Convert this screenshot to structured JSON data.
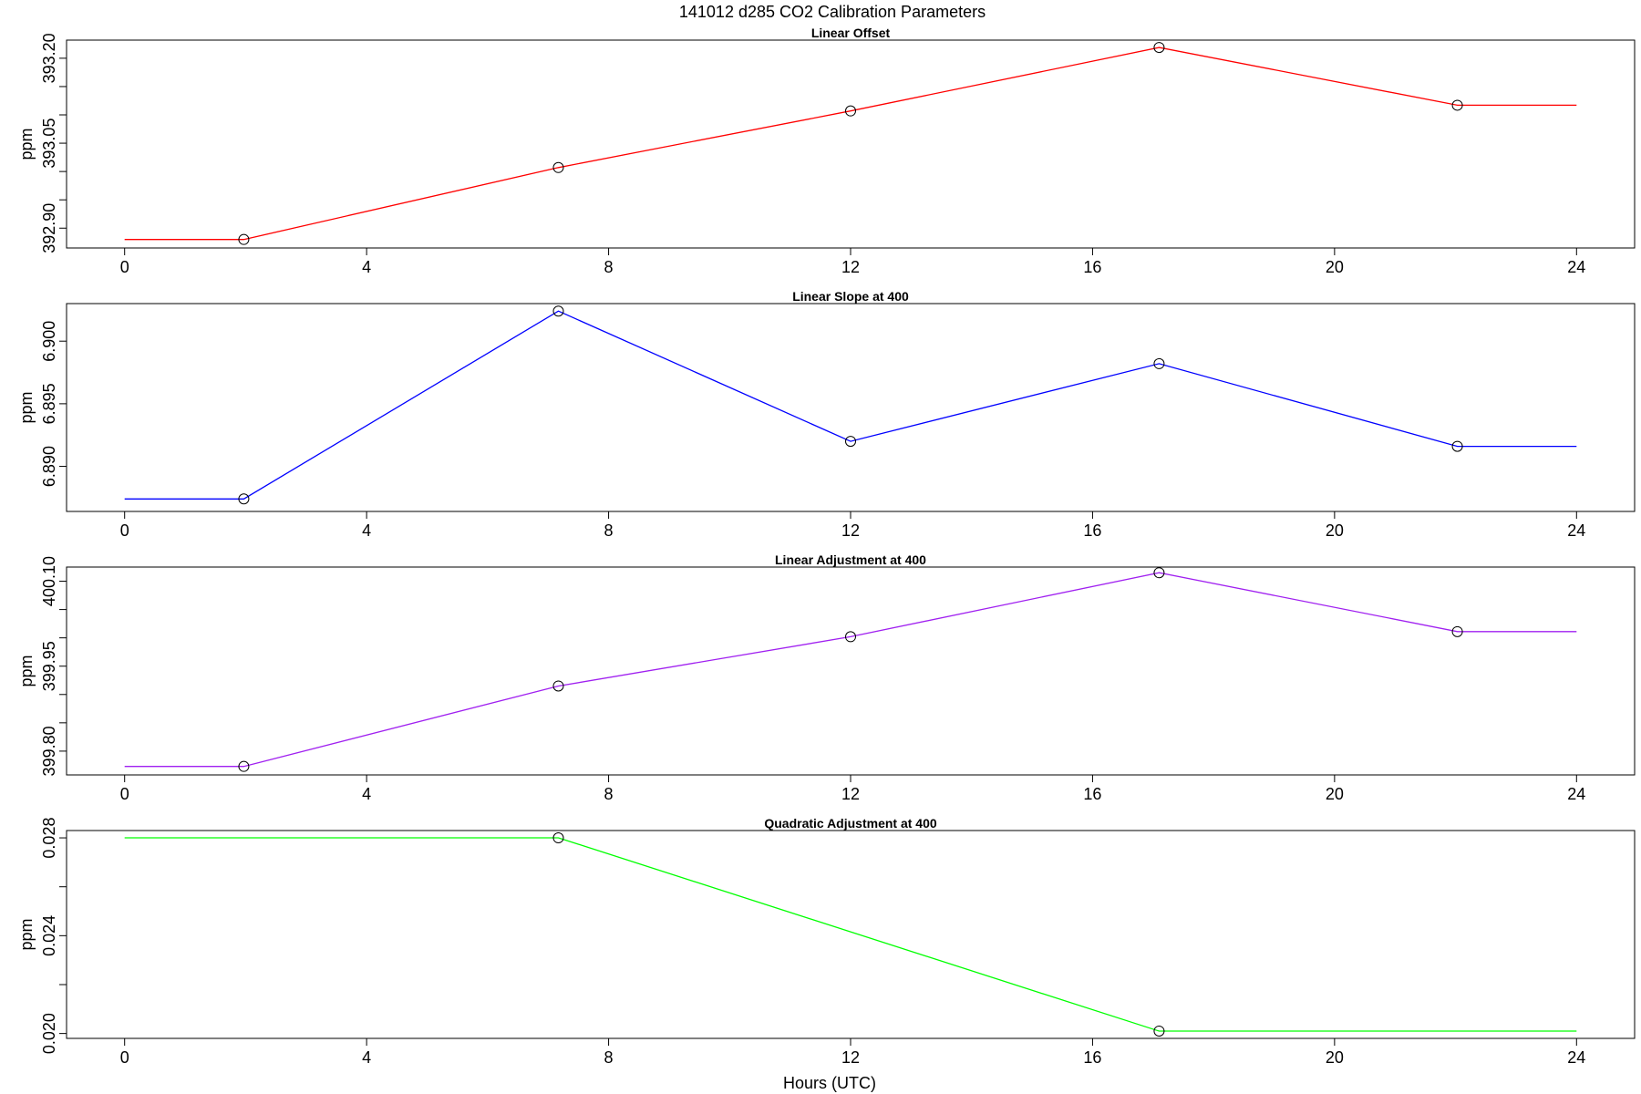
{
  "figure": {
    "title": "141012   d285   CO2 Calibration Parameters",
    "xlabel": "Hours (UTC)"
  },
  "chart_data": [
    {
      "type": "line",
      "title": "Linear Offset",
      "ylabel": "ppm",
      "color": "#ff0000",
      "x_ticks": [
        0,
        4,
        8,
        12,
        16,
        20,
        24
      ],
      "x_tick_labels": [
        "0",
        "4",
        "8",
        "12",
        "16",
        "20",
        "24"
      ],
      "y_ticks": [
        392.9,
        392.95,
        393.0,
        393.05,
        393.1,
        393.15,
        393.2
      ],
      "y_tick_labels": [
        "392.90",
        "",
        "",
        "393.05",
        "",
        "",
        "393.20"
      ],
      "xlim": [
        -0.96,
        24.96
      ],
      "ylim": [
        392.865,
        393.232
      ],
      "line_x": [
        0,
        1.97,
        7.17,
        12.0,
        17.1,
        22.03,
        24
      ],
      "line_y": [
        392.88,
        392.88,
        393.007,
        393.107,
        393.219,
        393.117,
        393.117
      ],
      "points_x": [
        1.97,
        7.17,
        12.0,
        17.1,
        22.03
      ],
      "points_y": [
        392.88,
        393.007,
        393.107,
        393.219,
        393.117
      ]
    },
    {
      "type": "line",
      "title": "Linear Slope at 400",
      "ylabel": "ppm",
      "color": "#0000ff",
      "x_ticks": [
        0,
        4,
        8,
        12,
        16,
        20,
        24
      ],
      "x_tick_labels": [
        "0",
        "4",
        "8",
        "12",
        "16",
        "20",
        "24"
      ],
      "y_ticks": [
        6.89,
        6.895,
        6.9
      ],
      "y_tick_labels": [
        "6.890",
        "6.895",
        "6.900"
      ],
      "xlim": [
        -0.96,
        24.96
      ],
      "ylim": [
        6.8864,
        6.903
      ],
      "line_x": [
        0,
        1.97,
        7.17,
        12.0,
        17.1,
        22.03,
        24
      ],
      "line_y": [
        6.8874,
        6.8874,
        6.9024,
        6.892,
        6.8982,
        6.8916,
        6.8916
      ],
      "points_x": [
        1.97,
        7.17,
        12.0,
        17.1,
        22.03
      ],
      "points_y": [
        6.8874,
        6.9024,
        6.892,
        6.8982,
        6.8916
      ]
    },
    {
      "type": "line",
      "title": "Linear Adjustment at 400",
      "ylabel": "ppm",
      "color": "#a020f0",
      "x_ticks": [
        0,
        4,
        8,
        12,
        16,
        20,
        24
      ],
      "x_tick_labels": [
        "0",
        "4",
        "8",
        "12",
        "16",
        "20",
        "24"
      ],
      "y_ticks": [
        399.8,
        399.85,
        399.9,
        399.95,
        400.0,
        400.05,
        400.1
      ],
      "y_tick_labels": [
        "399.80",
        "",
        "",
        "399.95",
        "",
        "",
        "400.10"
      ],
      "xlim": [
        -0.96,
        24.96
      ],
      "ylim": [
        399.758,
        400.125
      ],
      "line_x": [
        0,
        1.97,
        7.17,
        12.0,
        17.1,
        22.03,
        24
      ],
      "line_y": [
        399.773,
        399.773,
        399.915,
        400.002,
        400.115,
        400.011,
        400.011
      ],
      "points_x": [
        1.97,
        7.17,
        12.0,
        17.1,
        22.03
      ],
      "points_y": [
        399.773,
        399.915,
        400.002,
        400.115,
        400.011
      ]
    },
    {
      "type": "line",
      "title": "Quadratic Adjustment at 400",
      "ylabel": "ppm",
      "color": "#00ff00",
      "x_ticks": [
        0,
        4,
        8,
        12,
        16,
        20,
        24
      ],
      "x_tick_labels": [
        "0",
        "4",
        "8",
        "12",
        "16",
        "20",
        "24"
      ],
      "y_ticks": [
        0.02,
        0.022,
        0.024,
        0.026,
        0.028
      ],
      "y_tick_labels": [
        "0.020",
        "",
        "0.024",
        "",
        "0.028"
      ],
      "xlim": [
        -0.96,
        24.96
      ],
      "ylim": [
        0.0198,
        0.0283
      ],
      "line_x": [
        0,
        7.17,
        17.1,
        24
      ],
      "line_y": [
        0.028,
        0.028,
        0.0201,
        0.0201
      ],
      "points_x": [
        7.17,
        17.1
      ],
      "points_y": [
        0.028,
        0.0201
      ]
    }
  ]
}
